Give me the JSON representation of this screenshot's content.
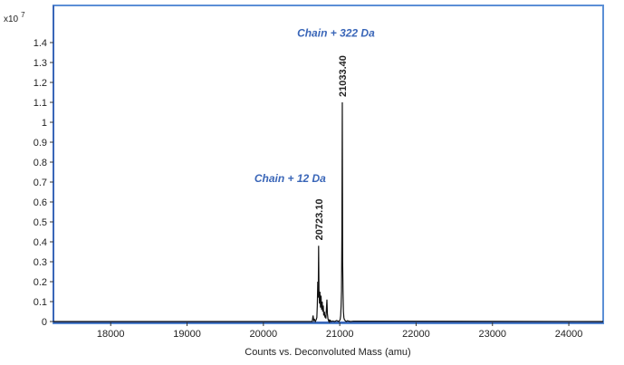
{
  "chart_data": {
    "type": "line",
    "title": "",
    "xlabel": "Counts vs. Deconvoluted Mass (amu)",
    "ylabel": "",
    "y_multiplier": "x10",
    "y_multiplier_exp": "7",
    "xlim": [
      17250,
      24450
    ],
    "ylim": [
      0,
      1.45
    ],
    "x_ticks": [
      18000,
      19000,
      20000,
      21000,
      22000,
      23000,
      24000
    ],
    "x_tick_labels": [
      "18000",
      "19000",
      "20000",
      "21000",
      "22000",
      "23000",
      "24000"
    ],
    "y_ticks": [
      0,
      0.1,
      0.2,
      0.3,
      0.4,
      0.5,
      0.6,
      0.7,
      0.8,
      0.9,
      1,
      1.1,
      1.2,
      1.3,
      1.4
    ],
    "y_tick_labels": [
      "0",
      "0.1",
      "0.2",
      "0.3",
      "0.4",
      "0.5",
      "0.6",
      "0.7",
      "0.8",
      "0.9",
      "1",
      "1.1",
      "1.2",
      "1.3",
      "1.4"
    ],
    "grid": false,
    "colors": {
      "frame": "#5b8fd6",
      "axis": "#3a66b8",
      "trace": "#111111",
      "annotation": "#3a66b8"
    },
    "series": [
      {
        "x": [
          17250,
          20600,
          20640,
          20650,
          20660,
          20670,
          20680,
          20690,
          20700,
          20706,
          20712,
          20718,
          20723.1,
          20728,
          20734,
          20740,
          20748,
          20755,
          20762,
          20770,
          20776,
          20784,
          20790,
          20798,
          20806,
          20812,
          20818,
          20826,
          20832,
          20838,
          20845,
          20852,
          20858,
          20864,
          20870,
          20878,
          20890,
          20910,
          20930,
          20960,
          20990,
          21005,
          21012,
          21018,
          21023,
          21028,
          21033.4,
          21038,
          21043,
          21048,
          21054,
          21060,
          21070,
          21085,
          21100,
          21140,
          21180,
          24450
        ],
        "y": [
          0,
          0,
          0,
          0.03,
          0.005,
          0.01,
          0,
          0.008,
          0.02,
          0.08,
          0.2,
          0.12,
          0.38,
          0.16,
          0.09,
          0.15,
          0.07,
          0.13,
          0.06,
          0.1,
          0.05,
          0.08,
          0.03,
          0.05,
          0.02,
          0.03,
          0.015,
          0.07,
          0.11,
          0.04,
          0.015,
          0.005,
          0,
          0.01,
          0,
          0.005,
          0,
          0.003,
          0,
          0.005,
          0,
          0.01,
          0.03,
          0.08,
          0.15,
          0.45,
          1.1,
          0.3,
          0.15,
          0.05,
          0.02,
          0.01,
          0.005,
          0,
          0.004,
          0,
          0.002,
          0
        ]
      }
    ],
    "peak_labels": [
      {
        "x": 20723.1,
        "y": 0.38,
        "text": "20723.10"
      },
      {
        "x": 21033.4,
        "y": 1.1,
        "text": "21033.40"
      }
    ],
    "annotations": [
      {
        "x": 20350,
        "y": 0.7,
        "text": "Chain + 12 Da"
      },
      {
        "x": 20950,
        "y": 1.43,
        "text": "Chain + 322 Da"
      }
    ]
  }
}
